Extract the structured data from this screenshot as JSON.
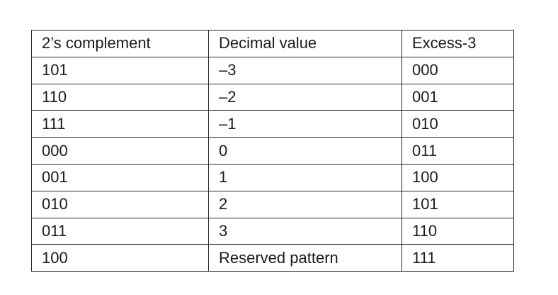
{
  "table": {
    "headers": [
      "2’s complement",
      "Decimal value",
      "Excess-3"
    ],
    "rows": [
      [
        "101",
        "–3",
        "000"
      ],
      [
        "110",
        "–2",
        "001"
      ],
      [
        "111",
        "–1",
        "010"
      ],
      [
        "000",
        "0",
        "011"
      ],
      [
        "001",
        "1",
        "100"
      ],
      [
        "010",
        "2",
        "101"
      ],
      [
        "011",
        "3",
        "110"
      ],
      [
        "100",
        "Reserved pattern",
        "111"
      ]
    ]
  }
}
